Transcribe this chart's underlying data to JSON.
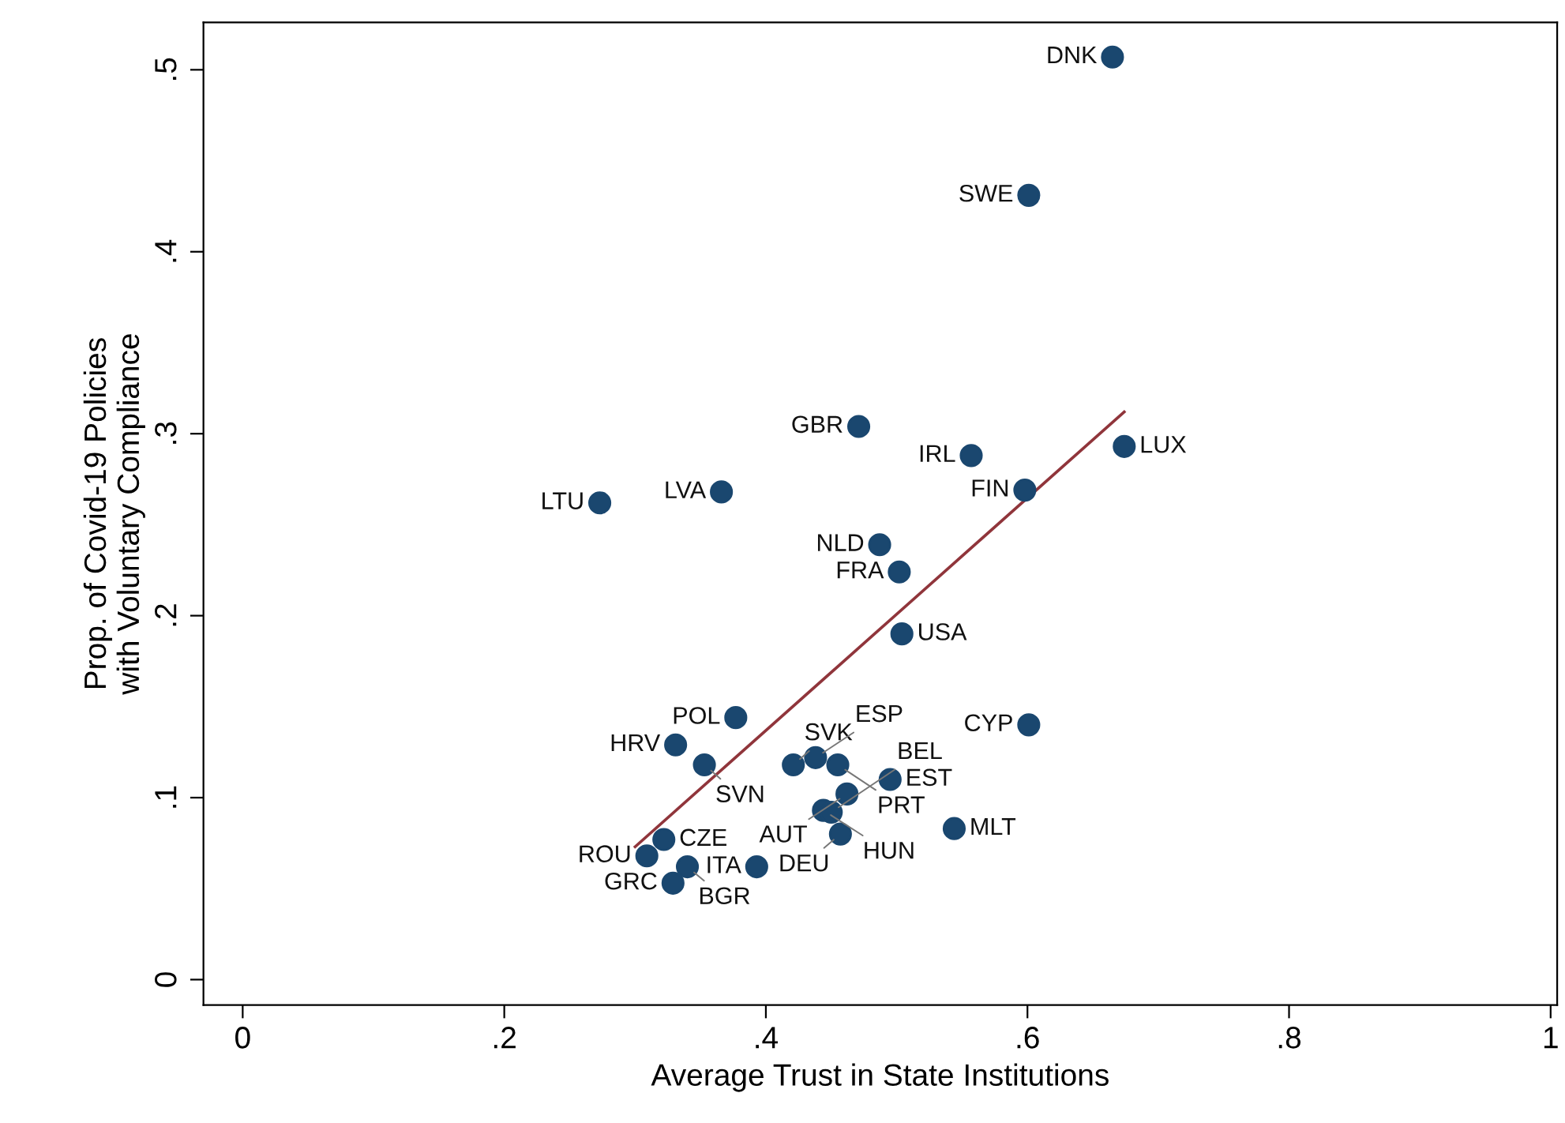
{
  "chart_data": {
    "type": "scatter",
    "xlabel": "Average Trust in State Institutions",
    "ylabel": "Prop. of Covid-19 Policies\nwith Voluntary Compliance",
    "xlim": [
      -0.03,
      1.005
    ],
    "ylim": [
      -0.014,
      0.526
    ],
    "xticks": [
      0,
      {
        "value": 0.2,
        "label": ".2"
      },
      {
        "value": 0.4,
        "label": ".4"
      },
      {
        "value": 0.6,
        "label": ".6"
      },
      {
        "value": 0.8,
        "label": ".8"
      },
      1
    ],
    "yticks": [
      0,
      {
        "value": 0.1,
        "label": ".1"
      },
      {
        "value": 0.2,
        "label": ".2"
      },
      {
        "value": 0.3,
        "label": ".3"
      },
      {
        "value": 0.4,
        "label": ".4"
      },
      {
        "value": 0.5,
        "label": ".5"
      }
    ],
    "grid": false,
    "legend": false,
    "series": [
      {
        "type": "scatter",
        "color": "#1a476f",
        "marker": "circle",
        "x": [
          0.665,
          0.601,
          0.471,
          0.557,
          0.674,
          0.598,
          0.273,
          0.366,
          0.487,
          0.502,
          0.504,
          0.377,
          0.601,
          0.331,
          0.353,
          0.421,
          0.438,
          0.455,
          0.495,
          0.462,
          0.444,
          0.45,
          0.457,
          0.544,
          0.322,
          0.309,
          0.34,
          0.393,
          0.329
        ],
        "values": [
          0.507,
          0.431,
          0.304,
          0.288,
          0.293,
          0.269,
          0.262,
          0.268,
          0.239,
          0.224,
          0.19,
          0.144,
          0.14,
          0.129,
          0.118,
          0.118,
          0.122,
          0.118,
          0.11,
          0.102,
          0.093,
          0.092,
          0.08,
          0.083,
          0.077,
          0.068,
          0.062,
          0.062,
          0.053
        ]
      },
      {
        "type": "line",
        "color": "#90353b",
        "marker": "none",
        "line_style": "solid",
        "x": [
          0.3,
          0.674
        ],
        "values": [
          0.073,
          0.312
        ]
      }
    ],
    "annotations": [
      {
        "text": "DNK",
        "x": 0.665,
        "y": 0.507
      },
      {
        "text": "SWE",
        "x": 0.601,
        "y": 0.431
      },
      {
        "text": "GBR",
        "x": 0.471,
        "y": 0.304
      },
      {
        "text": "IRL",
        "x": 0.557,
        "y": 0.288
      },
      {
        "text": "LUX",
        "x": 0.674,
        "y": 0.293
      },
      {
        "text": "FIN",
        "x": 0.598,
        "y": 0.269
      },
      {
        "text": "LTU",
        "x": 0.273,
        "y": 0.262
      },
      {
        "text": "LVA",
        "x": 0.366,
        "y": 0.268
      },
      {
        "text": "NLD",
        "x": 0.487,
        "y": 0.239
      },
      {
        "text": "FRA",
        "x": 0.502,
        "y": 0.224
      },
      {
        "text": "USA",
        "x": 0.504,
        "y": 0.19
      },
      {
        "text": "POL",
        "x": 0.377,
        "y": 0.144
      },
      {
        "text": "CYP",
        "x": 0.601,
        "y": 0.14
      },
      {
        "text": "HRV",
        "x": 0.331,
        "y": 0.129
      },
      {
        "text": "SVN",
        "x": 0.353,
        "y": 0.118
      },
      {
        "text": "SVK",
        "x": 0.421,
        "y": 0.118
      },
      {
        "text": "ESP",
        "x": 0.438,
        "y": 0.122
      },
      {
        "text": "PRT",
        "x": 0.455,
        "y": 0.118
      },
      {
        "text": "EST",
        "x": 0.495,
        "y": 0.11
      },
      {
        "text": "AUT",
        "x": 0.462,
        "y": 0.102
      },
      {
        "text": "HUN",
        "x": 0.444,
        "y": 0.093
      },
      {
        "text": "BEL",
        "x": 0.45,
        "y": 0.092
      },
      {
        "text": "DEU",
        "x": 0.457,
        "y": 0.08
      },
      {
        "text": "MLT",
        "x": 0.544,
        "y": 0.083
      },
      {
        "text": "CZE",
        "x": 0.322,
        "y": 0.077
      },
      {
        "text": "ROU",
        "x": 0.309,
        "y": 0.068
      },
      {
        "text": "BGR",
        "x": 0.34,
        "y": 0.062
      },
      {
        "text": "ITA",
        "x": 0.393,
        "y": 0.062
      },
      {
        "text": "GRC",
        "x": 0.329,
        "y": 0.053
      }
    ]
  }
}
